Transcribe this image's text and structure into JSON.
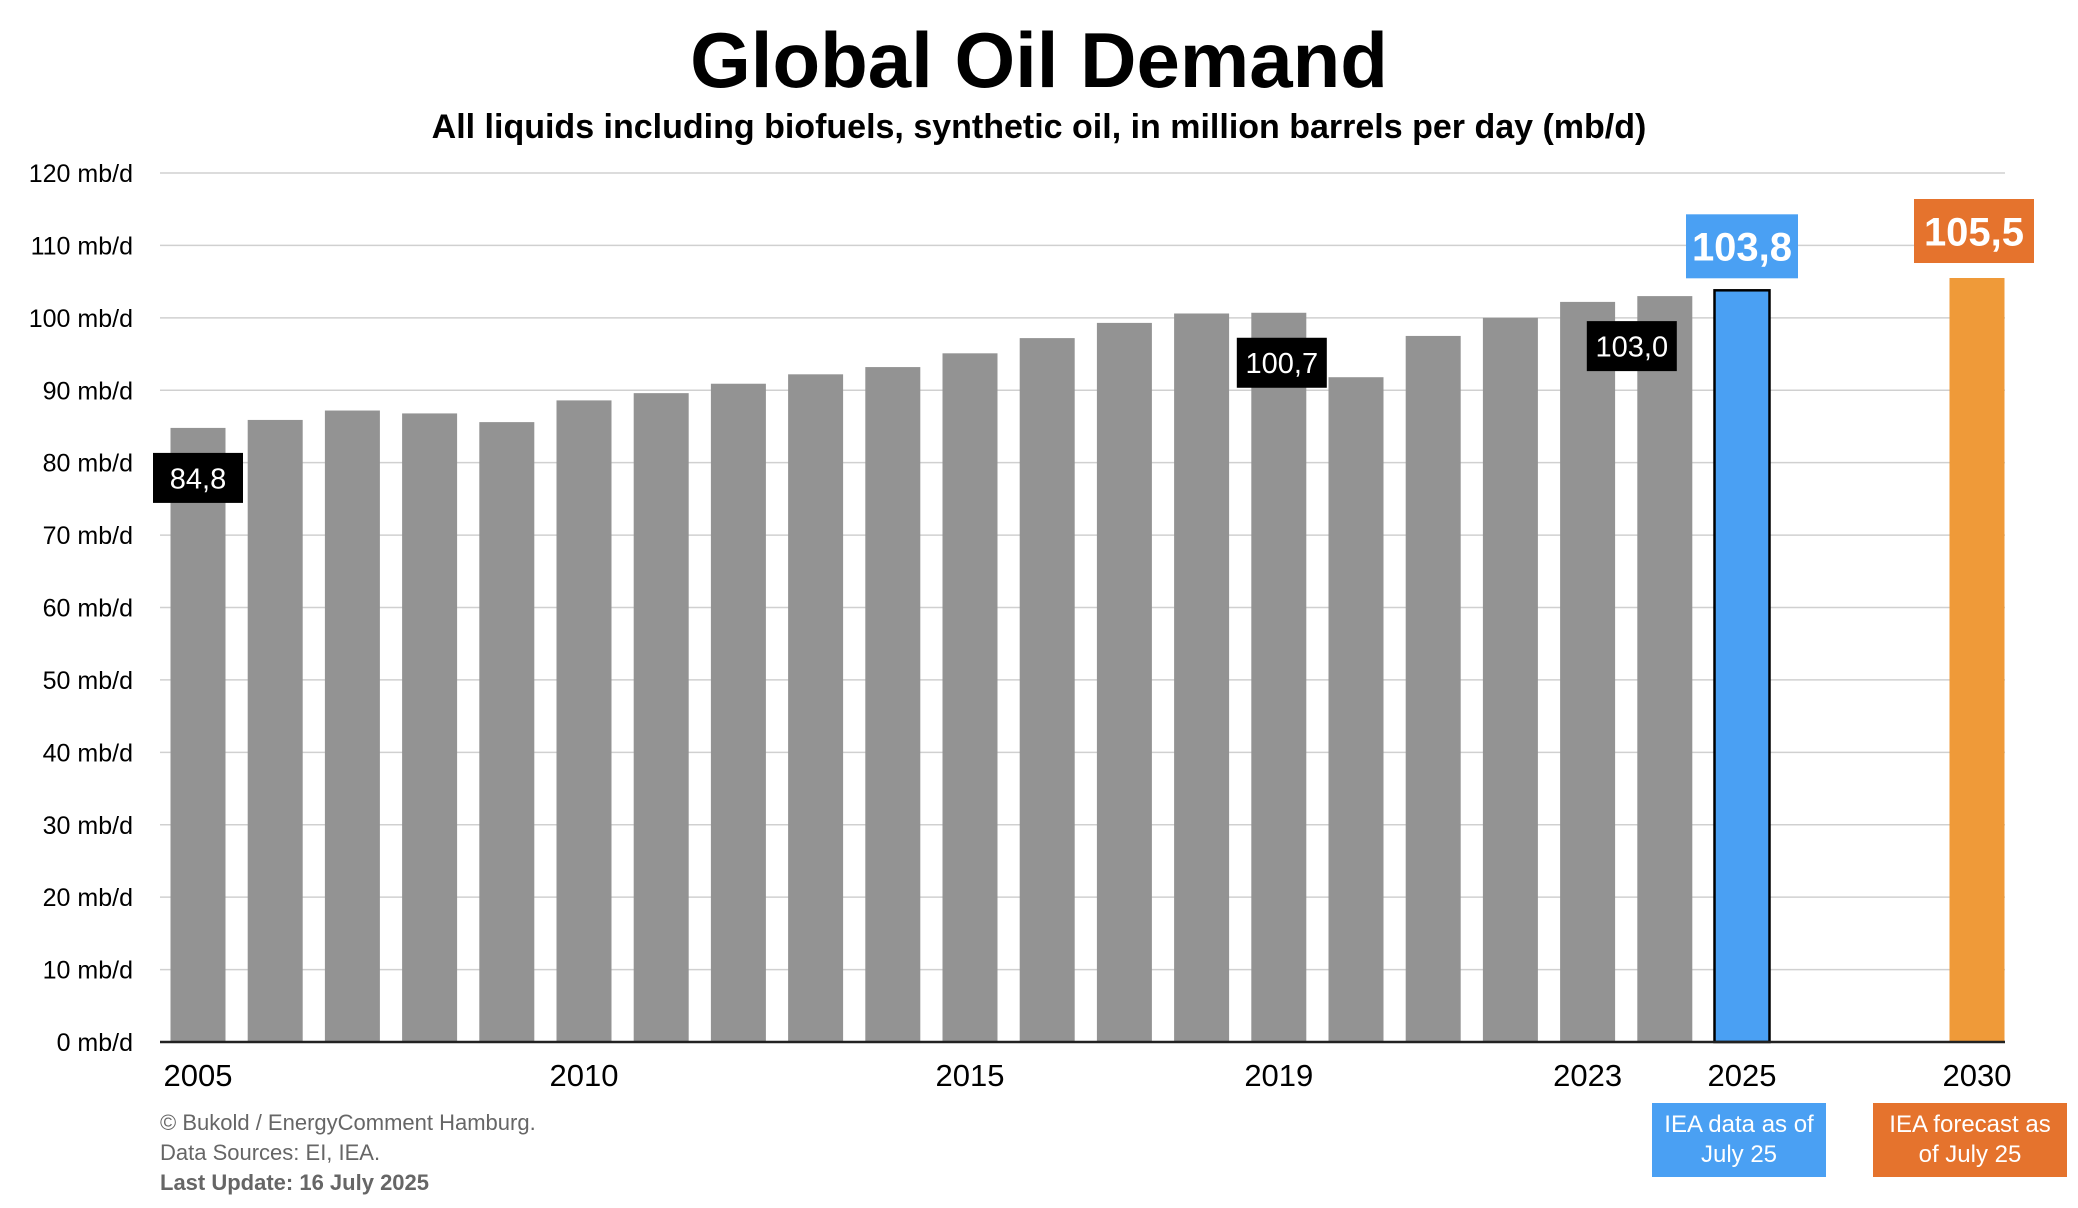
{
  "title": "Global Oil Demand",
  "subtitle": "All liquids including biofuels, synthetic oil, in million barrels per day (mb/d)",
  "chart_data": {
    "type": "bar",
    "title": "Global Oil Demand",
    "subtitle": "All liquids including biofuels, synthetic oil, in million barrels per day (mb/d)",
    "ylim": [
      0,
      120
    ],
    "y_ticks": [
      "0 mb/d",
      "10 mb/d",
      "20 mb/d",
      "30 mb/d",
      "40 mb/d",
      "50 mb/d",
      "60 mb/d",
      "70 mb/d",
      "80 mb/d",
      "90 mb/d",
      "100 mb/d",
      "110 mb/d",
      "120 mb/d"
    ],
    "grid": true,
    "bars": [
      {
        "year": "2005",
        "value": 84.8,
        "label": "2005",
        "annotation": "84,8",
        "kind": "history"
      },
      {
        "year": "2006",
        "value": 85.9,
        "label": "",
        "kind": "history"
      },
      {
        "year": "2007",
        "value": 87.2,
        "label": "",
        "kind": "history"
      },
      {
        "year": "2008",
        "value": 86.8,
        "label": "",
        "kind": "history"
      },
      {
        "year": "2009",
        "value": 85.6,
        "label": "",
        "kind": "history"
      },
      {
        "year": "2010",
        "value": 88.6,
        "label": "2010",
        "kind": "history"
      },
      {
        "year": "2011",
        "value": 89.6,
        "label": "",
        "kind": "history"
      },
      {
        "year": "2012",
        "value": 90.9,
        "label": "",
        "kind": "history"
      },
      {
        "year": "2013",
        "value": 92.2,
        "label": "",
        "kind": "history"
      },
      {
        "year": "2014",
        "value": 93.2,
        "label": "",
        "kind": "history"
      },
      {
        "year": "2015",
        "value": 95.1,
        "label": "2015",
        "kind": "history"
      },
      {
        "year": "2016",
        "value": 97.2,
        "label": "",
        "kind": "history"
      },
      {
        "year": "2017",
        "value": 99.3,
        "label": "",
        "kind": "history"
      },
      {
        "year": "2018",
        "value": 100.6,
        "label": "",
        "kind": "history"
      },
      {
        "year": "2019",
        "value": 100.7,
        "label": "2019",
        "annotation": "100,7",
        "kind": "history"
      },
      {
        "year": "2020",
        "value": 91.8,
        "label": "",
        "kind": "history"
      },
      {
        "year": "2021",
        "value": 97.5,
        "label": "",
        "kind": "history"
      },
      {
        "year": "2022",
        "value": 100.0,
        "label": "",
        "kind": "history"
      },
      {
        "year": "2023",
        "value": 102.2,
        "label": "2023",
        "kind": "history"
      },
      {
        "year": "2024",
        "value": 103.0,
        "label": "",
        "annotation": "103,0",
        "kind": "history"
      },
      {
        "year": "2025",
        "value": 103.8,
        "label": "2025",
        "annotation": "103,8",
        "kind": "iea-2025"
      },
      {
        "year": "2030",
        "value": 105.5,
        "label": "2030",
        "annotation": "105,5",
        "kind": "iea-2030"
      }
    ],
    "colors": {
      "history": "#939393",
      "iea-2025": "#4aa0f3",
      "iea-2030": "#ef9a39",
      "grid": "#d0d0d0",
      "axis": "#222222"
    },
    "label_colors": {
      "history": "#000000",
      "iea-2025": "#4aa0f3",
      "iea-2030": "#e5732d"
    }
  },
  "credits": {
    "line1": "© Bukold / EnergyComment Hamburg.",
    "line2": "Data Sources: EI, IEA.",
    "line3": "Last Update: 16 July  2025"
  },
  "notes": {
    "n2025": {
      "text": "IEA data as of July 25",
      "color": "#4aa0f3"
    },
    "n2030": {
      "text": "IEA forecast as of July 25",
      "color": "#e5732d"
    }
  }
}
